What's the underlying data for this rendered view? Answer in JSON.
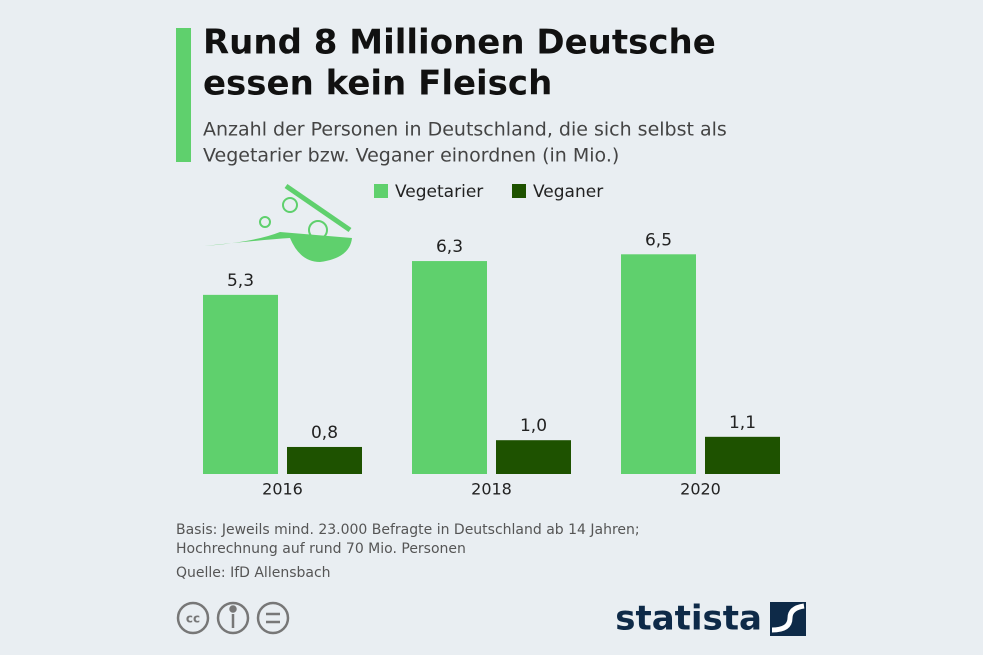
{
  "chart_data": {
    "type": "bar",
    "title": [
      "Rund 8 Millionen Deutsche",
      "essen kein Fleisch"
    ],
    "subtitle": [
      "Anzahl der Personen in Deutschland, die sich selbst als",
      "Vegetarier bzw. Veganer einordnen (in Mio.)"
    ],
    "categories": [
      "2016",
      "2018",
      "2020"
    ],
    "series": [
      {
        "name": "Vegetarier",
        "color": "#5fd06d",
        "values": [
          5.3,
          6.3,
          6.5
        ],
        "value_labels": [
          "5,3",
          "6,3",
          "6,5"
        ]
      },
      {
        "name": "Veganer",
        "color": "#1e5200",
        "values": [
          0.8,
          1.0,
          1.1
        ],
        "value_labels": [
          "0,8",
          "1,0",
          "1,1"
        ]
      }
    ],
    "legend": "top",
    "notes": [
      "Basis: Jeweils mind. 23.000 Befragte in Deutschland ab 14 Jahren;",
      "Hochrechnung auf rund 70 Mio. Personen"
    ],
    "source": "Quelle: IfD Allensbach",
    "license_label": "cc",
    "brand": "statista"
  }
}
